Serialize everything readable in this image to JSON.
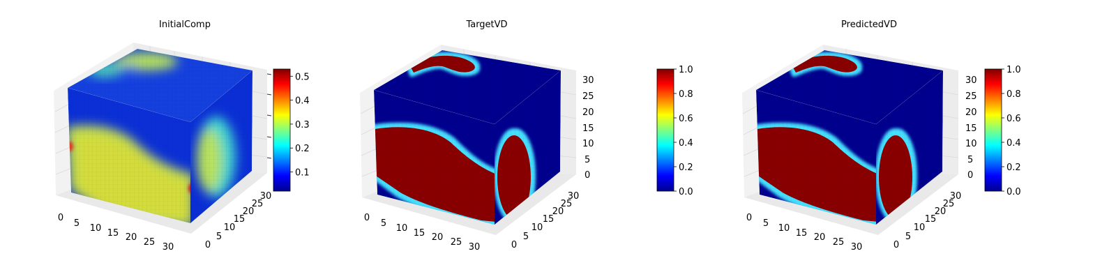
{
  "chart_data": [
    {
      "type": "volume",
      "title": "InitialComp",
      "x_ticks": [
        "0",
        "5",
        "10",
        "15",
        "20",
        "25",
        "30"
      ],
      "y_ticks": [
        "0",
        "5",
        "10",
        "15",
        "20",
        "25",
        "30"
      ],
      "z_ticks": [],
      "grid": true,
      "colormap": "jet",
      "colorbar": {
        "range": [
          0.02,
          0.53
        ],
        "ticks": [
          "0.1",
          "0.2",
          "0.3",
          "0.4",
          "0.5"
        ],
        "tick_values": [
          0.1,
          0.2,
          0.3,
          0.4,
          0.5
        ]
      }
    },
    {
      "type": "volume",
      "title": "TargetVD",
      "x_ticks": [
        "0",
        "5",
        "10",
        "15",
        "20",
        "25",
        "30"
      ],
      "y_ticks": [
        "0",
        "5",
        "10",
        "15",
        "20",
        "25",
        "30"
      ],
      "z_ticks": [
        "0",
        "5",
        "10",
        "15",
        "20",
        "25",
        "30"
      ],
      "grid": true,
      "colormap": "jet",
      "colorbar": {
        "range": [
          0.0,
          1.0
        ],
        "ticks": [
          "0.0",
          "0.2",
          "0.4",
          "0.6",
          "0.8",
          "1.0"
        ],
        "tick_values": [
          0.0,
          0.2,
          0.4,
          0.6,
          0.8,
          1.0
        ]
      }
    },
    {
      "type": "volume",
      "title": "PredictedVD",
      "x_ticks": [
        "0",
        "5",
        "10",
        "15",
        "20",
        "25",
        "30"
      ],
      "y_ticks": [
        "0",
        "5",
        "10",
        "15",
        "20",
        "25",
        "30"
      ],
      "z_ticks": [
        "0",
        "5",
        "10",
        "15",
        "20",
        "25",
        "30"
      ],
      "grid": true,
      "colormap": "jet",
      "colorbar": {
        "range": [
          0.0,
          1.0
        ],
        "ticks": [
          "0.0",
          "0.2",
          "0.4",
          "0.6",
          "0.8",
          "1.0"
        ],
        "tick_values": [
          0.0,
          0.2,
          0.4,
          0.6,
          0.8,
          1.0
        ]
      }
    }
  ],
  "colors": {
    "jet_low": "#00008f",
    "jet_mid": "#80ff80",
    "jet_high": "#800000",
    "pane": "#f2f2f2",
    "grid": "#d9d9d9"
  }
}
